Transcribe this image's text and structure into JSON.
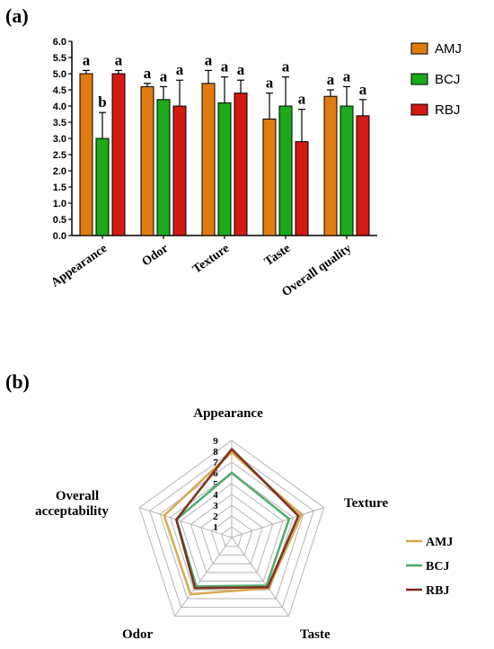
{
  "panel_a_label": "(a)",
  "panel_b_label": "(b)",
  "colors": {
    "AMJ": "#e07b10",
    "BCJ": "#1aaa1a",
    "RBJ": "#d21a12",
    "AMJ_line": "#d4a84a",
    "BCJ_line": "#4aa86a",
    "RBJ_line": "#7a2a1a",
    "grid": "#b5b5b5"
  },
  "chart_data": [
    {
      "type": "bar",
      "ylim": [
        0,
        6.0
      ],
      "yticks": [
        "0.0",
        "0.5",
        "1.0",
        "1.5",
        "2.0",
        "2.5",
        "3.0",
        "3.5",
        "4.0",
        "4.5",
        "5.0",
        "5.5",
        "6.0"
      ],
      "categories": [
        "Appearance",
        "Odor",
        "Texture",
        "Taste",
        "Overall quality"
      ],
      "series": [
        {
          "name": "AMJ",
          "values": [
            5.0,
            4.6,
            4.7,
            3.6,
            4.3
          ],
          "errors": [
            0.1,
            0.1,
            0.4,
            0.8,
            0.2
          ]
        },
        {
          "name": "BCJ",
          "values": [
            3.0,
            4.2,
            4.1,
            4.0,
            4.0
          ],
          "errors": [
            0.8,
            0.4,
            0.8,
            0.9,
            0.6
          ]
        },
        {
          "name": "RBJ",
          "values": [
            5.0,
            4.0,
            4.4,
            2.9,
            3.7
          ],
          "errors": [
            0.1,
            0.8,
            0.4,
            1.0,
            0.5
          ]
        }
      ],
      "significance": [
        [
          "a",
          "b",
          "a"
        ],
        [
          "a",
          "a",
          "a"
        ],
        [
          "a",
          "a",
          "a"
        ],
        [
          "a",
          "a",
          "a"
        ],
        [
          "a",
          "a",
          "a"
        ]
      ],
      "legend": [
        "AMJ",
        "BCJ",
        "RBJ"
      ],
      "grid": false
    },
    {
      "type": "radar",
      "axes": [
        "Appearance",
        "Texture",
        "Taste",
        "Odor",
        "Overall acceptability"
      ],
      "rmax": 9,
      "rings": [
        "1",
        "2",
        "3",
        "4",
        "5",
        "6",
        "7",
        "8",
        "9"
      ],
      "series": [
        {
          "name": "AMJ",
          "values": [
            7.9,
            6.8,
            5.8,
            6.5,
            6.6
          ]
        },
        {
          "name": "BCJ",
          "values": [
            6.0,
            5.6,
            5.5,
            5.6,
            5.4
          ]
        },
        {
          "name": "RBJ",
          "values": [
            8.2,
            6.5,
            5.7,
            5.8,
            5.4
          ]
        }
      ],
      "legend": [
        "AMJ",
        "BCJ",
        "RBJ"
      ],
      "grid": true
    }
  ]
}
